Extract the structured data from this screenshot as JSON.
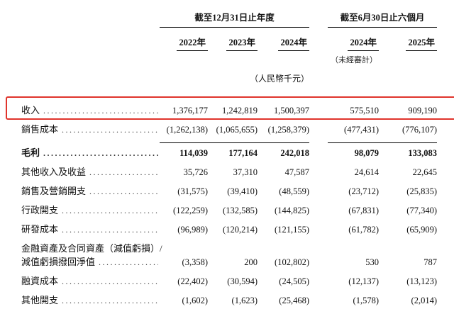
{
  "header": {
    "groups": [
      {
        "title": "截至12月31日止年度",
        "years": [
          "2022年",
          "2023年",
          "2024年"
        ]
      },
      {
        "title": "截至6月30日止六個月",
        "years": [
          "2024年",
          "2025年"
        ],
        "subnote": "（未經審計）"
      }
    ],
    "unit_note": "（人民幣千元）"
  },
  "rows": [
    {
      "label": "收入",
      "values": [
        "1,376,177",
        "1,242,819",
        "1,500,397",
        "575,510",
        "909,190"
      ],
      "highlight": true
    },
    {
      "label": "銷售成本",
      "values": [
        "(1,262,138)",
        "(1,065,655)",
        "(1,258,379)",
        "(477,431)",
        "(776,107)"
      ]
    },
    {
      "label": "毛利",
      "values": [
        "114,039",
        "177,164",
        "242,018",
        "98,079",
        "133,083"
      ],
      "bold": true,
      "subtotal": true
    },
    {
      "label": "其他收入及收益",
      "values": [
        "35,726",
        "37,310",
        "47,587",
        "24,614",
        "22,645"
      ]
    },
    {
      "label": "銷售及營銷開支",
      "values": [
        "(31,575)",
        "(39,410)",
        "(48,559)",
        "(23,712)",
        "(25,835)"
      ]
    },
    {
      "label": "行政開支",
      "values": [
        "(122,259)",
        "(132,585)",
        "(144,825)",
        "(67,831)",
        "(77,340)"
      ]
    },
    {
      "label": "研發成本",
      "values": [
        "(96,989)",
        "(120,214)",
        "(121,155)",
        "(61,782)",
        "(65,909)"
      ]
    },
    {
      "label": "金融資產及合同資產（減值虧損）/",
      "label2": "減值虧損撥回淨值",
      "values": [
        "(3,358)",
        "200",
        "(102,802)",
        "530",
        "787"
      ]
    },
    {
      "label": "融資成本",
      "values": [
        "(22,402)",
        "(30,594)",
        "(24,505)",
        "(12,137)",
        "(13,123)"
      ]
    },
    {
      "label": "其他開支",
      "values": [
        "(1,602)",
        "(1,623)",
        "(25,468)",
        "(1,578)",
        "(2,014)"
      ]
    }
  ],
  "highlight_color": "#e0342c",
  "line_color": "#000000"
}
